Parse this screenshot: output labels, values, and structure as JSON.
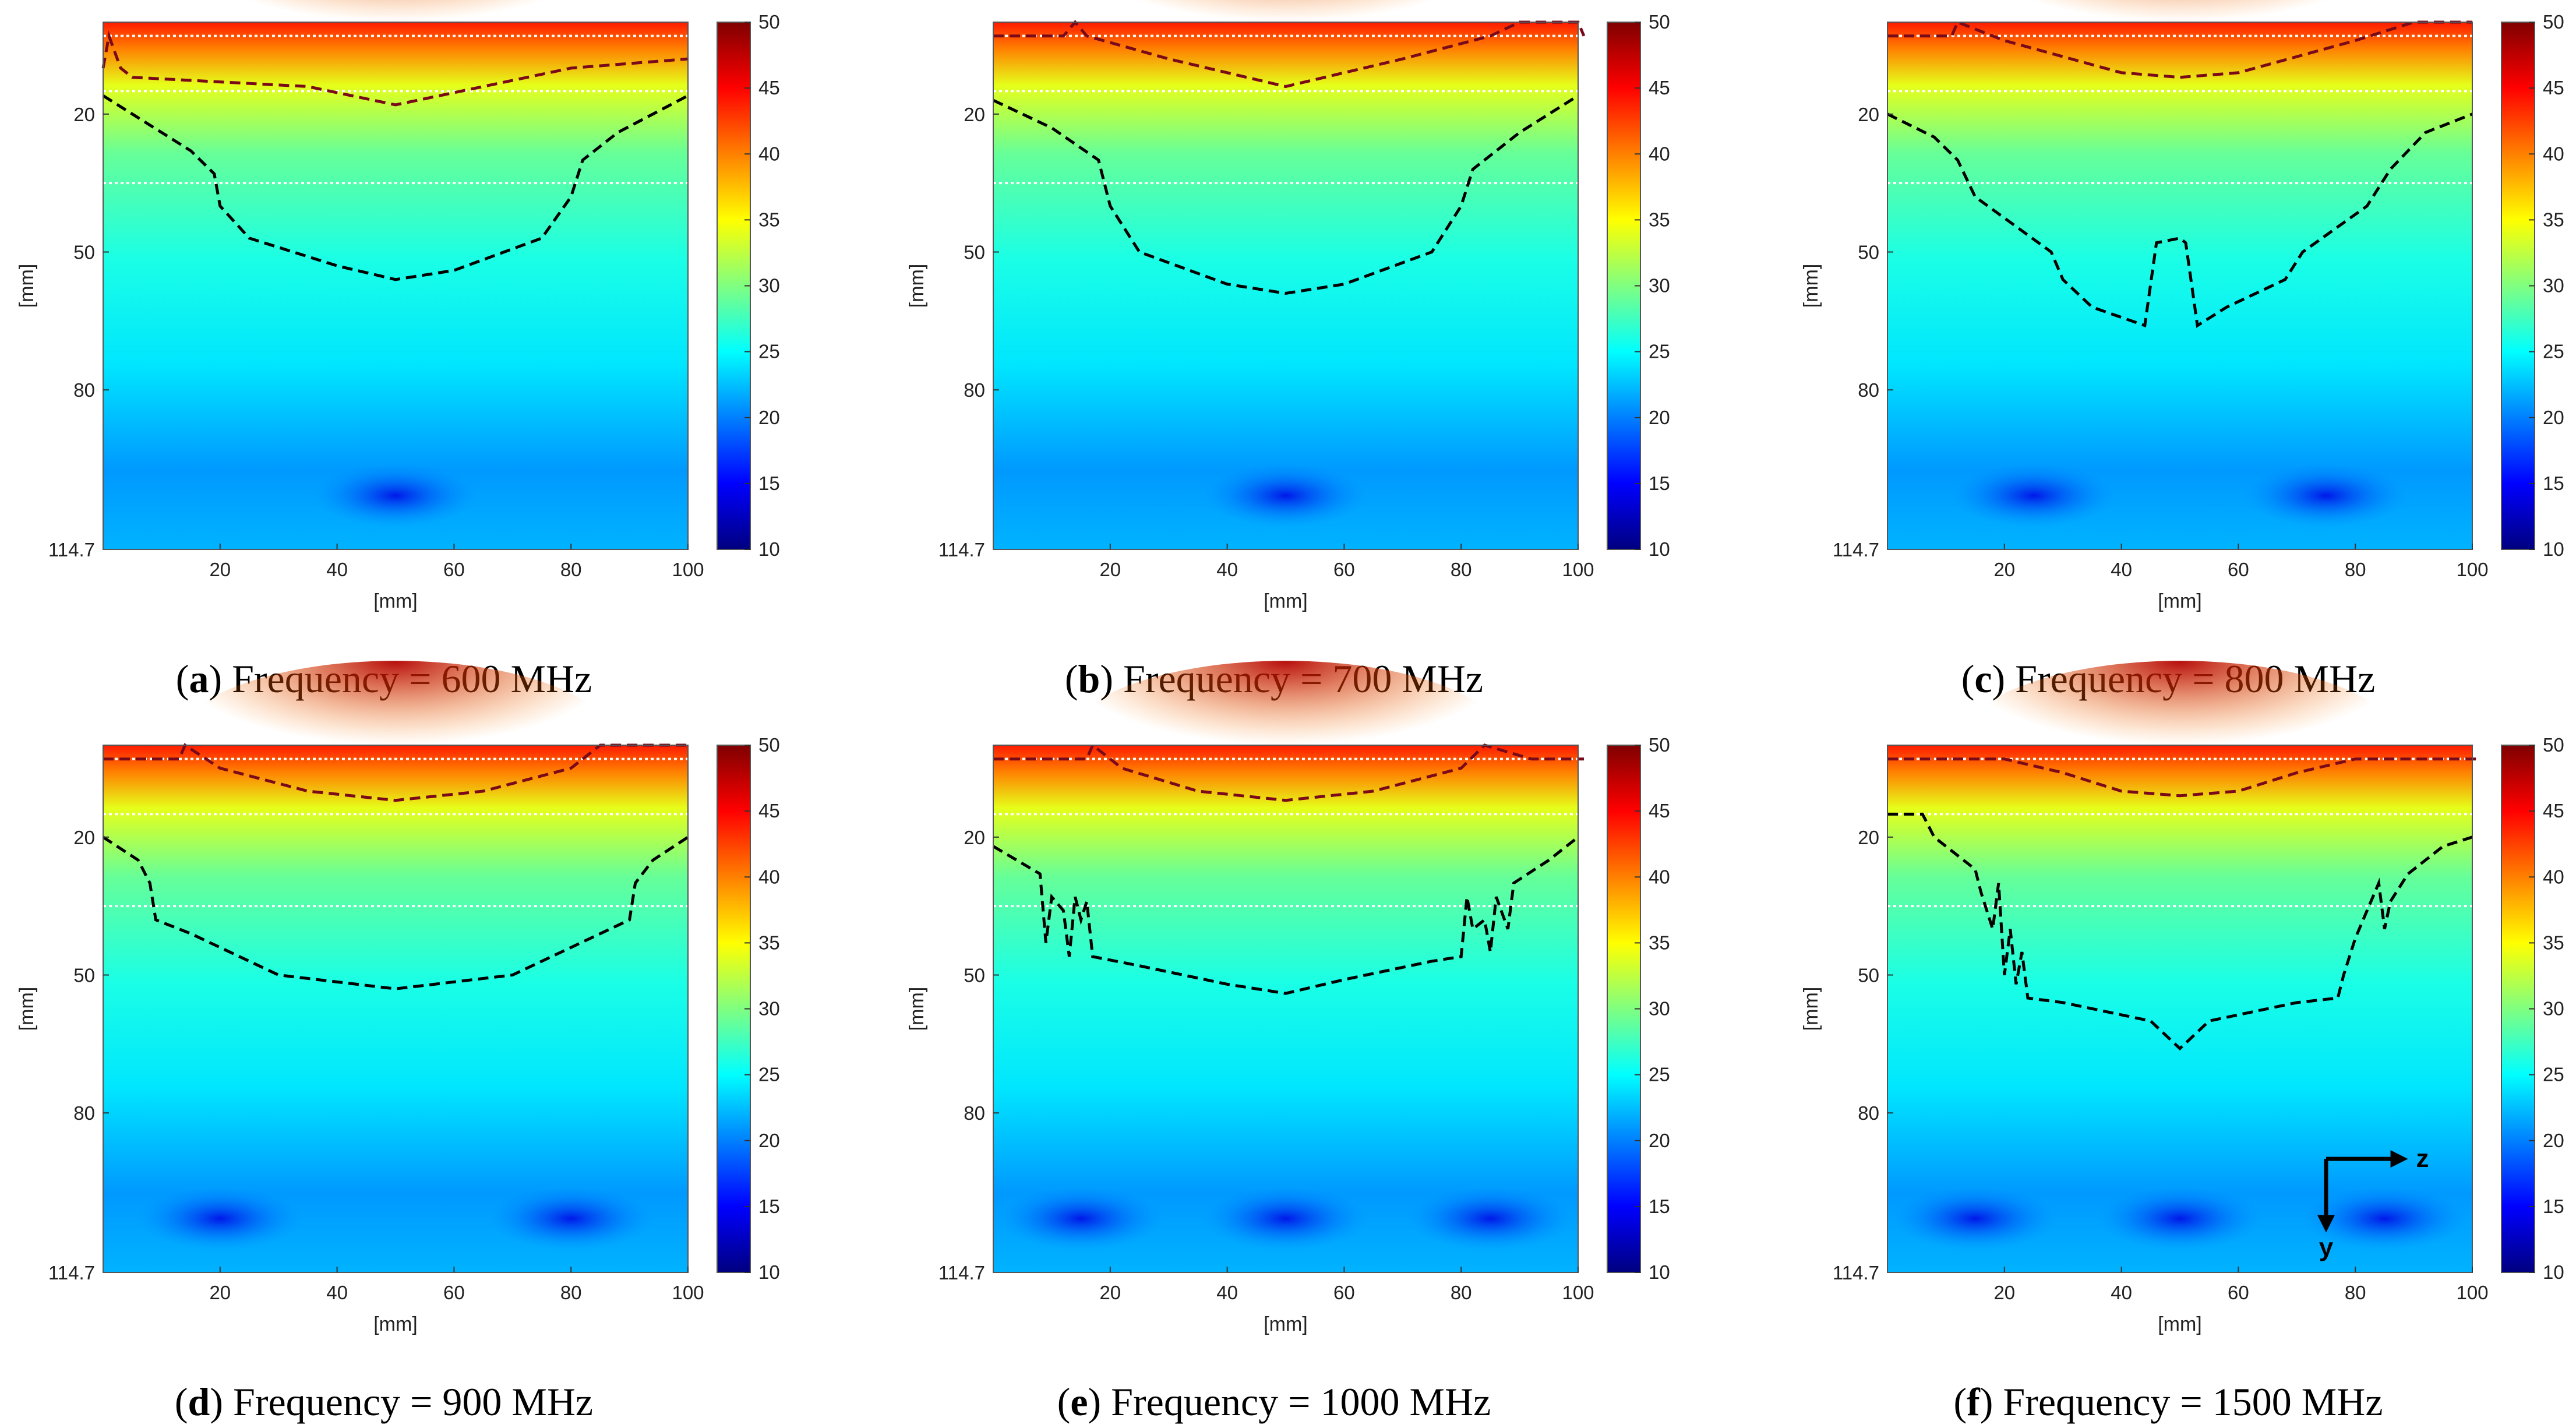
{
  "colorbar": {
    "min": 10,
    "max": 50,
    "ticks": [
      10,
      15,
      20,
      25,
      30,
      35,
      40,
      45,
      50
    ],
    "stops": [
      "#00007f",
      "#0000ff",
      "#0080ff",
      "#00ffff",
      "#80ff80",
      "#ffff00",
      "#ff8000",
      "#ff0000",
      "#7f0000"
    ]
  },
  "axes": {
    "xlabel": "[mm]",
    "ylabel": "[mm]",
    "xlim": [
      0,
      100
    ],
    "ylim": [
      0,
      114.7
    ],
    "xticks": [
      20,
      40,
      60,
      80,
      100
    ],
    "yticks": [
      20,
      50,
      80
    ],
    "ytick_extra": "114.7"
  },
  "colors": {
    "contour_black": "#000000",
    "contour_red": "#7a0a1a",
    "layer_line": "#ffffff"
  },
  "chart_data": [
    {
      "type": "heatmap",
      "panel": "a",
      "label": "a",
      "caption": "Frequency = 600 MHz",
      "xlabel": "[mm]",
      "ylabel": "[mm]",
      "layer_boundaries_mm": [
        3,
        15,
        35
      ],
      "red_contour": [
        [
          0,
          10
        ],
        [
          1,
          3
        ],
        [
          3,
          10
        ],
        [
          5,
          12
        ],
        [
          20,
          13
        ],
        [
          35,
          14
        ],
        [
          50,
          18
        ],
        [
          65,
          14
        ],
        [
          80,
          10
        ],
        [
          100,
          8
        ]
      ],
      "black_contour": [
        [
          0,
          16
        ],
        [
          5,
          20
        ],
        [
          15,
          28
        ],
        [
          19,
          33
        ],
        [
          20,
          40
        ],
        [
          25,
          47
        ],
        [
          40,
          53
        ],
        [
          50,
          56
        ],
        [
          60,
          54
        ],
        [
          75,
          47
        ],
        [
          80,
          38
        ],
        [
          82,
          30
        ],
        [
          88,
          24
        ],
        [
          100,
          16
        ]
      ]
    },
    {
      "type": "heatmap",
      "panel": "b",
      "label": "b",
      "caption": "Frequency = 700 MHz",
      "xlabel": "[mm]",
      "ylabel": "[mm]",
      "layer_boundaries_mm": [
        3,
        15,
        35
      ],
      "red_contour": [
        [
          0,
          3
        ],
        [
          12,
          3
        ],
        [
          14,
          0
        ],
        [
          16,
          3
        ],
        [
          30,
          8
        ],
        [
          50,
          14
        ],
        [
          70,
          8
        ],
        [
          85,
          3
        ],
        [
          90,
          0
        ],
        [
          100,
          0
        ],
        [
          101,
          3
        ]
      ],
      "black_contour": [
        [
          0,
          17
        ],
        [
          10,
          23
        ],
        [
          18,
          30
        ],
        [
          20,
          40
        ],
        [
          25,
          50
        ],
        [
          40,
          57
        ],
        [
          50,
          59
        ],
        [
          60,
          57
        ],
        [
          75,
          50
        ],
        [
          80,
          40
        ],
        [
          82,
          32
        ],
        [
          90,
          24
        ],
        [
          100,
          16
        ]
      ]
    },
    {
      "type": "heatmap",
      "panel": "c",
      "label": "c",
      "caption": "Frequency = 800 MHz",
      "xlabel": "[mm]",
      "ylabel": "[mm]",
      "layer_boundaries_mm": [
        3,
        15,
        35
      ],
      "red_contour": [
        [
          0,
          3
        ],
        [
          11,
          3
        ],
        [
          12,
          0
        ],
        [
          20,
          4
        ],
        [
          40,
          11
        ],
        [
          50,
          12
        ],
        [
          60,
          11
        ],
        [
          80,
          4
        ],
        [
          90,
          0
        ],
        [
          100,
          0
        ]
      ],
      "black_contour": [
        [
          0,
          20
        ],
        [
          8,
          25
        ],
        [
          12,
          30
        ],
        [
          15,
          38
        ],
        [
          28,
          50
        ],
        [
          30,
          56
        ],
        [
          35,
          62
        ],
        [
          44,
          66
        ],
        [
          45,
          57
        ],
        [
          46,
          48
        ],
        [
          50,
          47
        ],
        [
          51,
          48
        ],
        [
          52,
          57
        ],
        [
          53,
          66
        ],
        [
          58,
          62
        ],
        [
          68,
          56
        ],
        [
          71,
          50
        ],
        [
          82,
          40
        ],
        [
          86,
          32
        ],
        [
          92,
          24
        ],
        [
          100,
          20
        ]
      ]
    },
    {
      "type": "heatmap",
      "panel": "d",
      "label": "d",
      "caption": "Frequency = 900 MHz",
      "xlabel": "[mm]",
      "ylabel": "[mm]",
      "layer_boundaries_mm": [
        3,
        15,
        35
      ],
      "red_contour": [
        [
          0,
          3
        ],
        [
          13,
          3
        ],
        [
          14,
          0
        ],
        [
          20,
          5
        ],
        [
          35,
          10
        ],
        [
          50,
          12
        ],
        [
          65,
          10
        ],
        [
          80,
          5
        ],
        [
          85,
          0
        ],
        [
          100,
          0
        ]
      ],
      "black_contour": [
        [
          0,
          20
        ],
        [
          6,
          25
        ],
        [
          8,
          30
        ],
        [
          9,
          38
        ],
        [
          15,
          41
        ],
        [
          30,
          50
        ],
        [
          50,
          53
        ],
        [
          70,
          50
        ],
        [
          85,
          41
        ],
        [
          90,
          38
        ],
        [
          91,
          30
        ],
        [
          94,
          25
        ],
        [
          100,
          20
        ]
      ]
    },
    {
      "type": "heatmap",
      "panel": "e",
      "label": "e",
      "caption": "Frequency = 1000 MHz",
      "xlabel": "[mm]",
      "ylabel": "[mm]",
      "layer_boundaries_mm": [
        3,
        15,
        35
      ],
      "red_contour": [
        [
          0,
          3
        ],
        [
          16,
          3
        ],
        [
          17,
          0
        ],
        [
          22,
          5
        ],
        [
          35,
          10
        ],
        [
          50,
          12
        ],
        [
          65,
          10
        ],
        [
          80,
          5
        ],
        [
          84,
          0
        ],
        [
          92,
          3
        ],
        [
          101,
          3
        ]
      ],
      "black_contour": [
        [
          0,
          22
        ],
        [
          8,
          28
        ],
        [
          9,
          43
        ],
        [
          10,
          33
        ],
        [
          12,
          36
        ],
        [
          13,
          46
        ],
        [
          14,
          33
        ],
        [
          15,
          38
        ],
        [
          16,
          34
        ],
        [
          17,
          46
        ],
        [
          25,
          48
        ],
        [
          40,
          52
        ],
        [
          50,
          54
        ],
        [
          60,
          51
        ],
        [
          75,
          47
        ],
        [
          80,
          46
        ],
        [
          81,
          33
        ],
        [
          82,
          40
        ],
        [
          84,
          38
        ],
        [
          85,
          45
        ],
        [
          86,
          33
        ],
        [
          88,
          40
        ],
        [
          89,
          30
        ],
        [
          95,
          25
        ],
        [
          100,
          20
        ]
      ]
    },
    {
      "type": "heatmap",
      "panel": "f",
      "label": "f",
      "caption": "Frequency = 1500 MHz",
      "xlabel": "[mm]",
      "ylabel": "[mm]",
      "layer_boundaries_mm": [
        3,
        15,
        35
      ],
      "red_contour": [
        [
          0,
          3
        ],
        [
          20,
          3
        ],
        [
          30,
          6
        ],
        [
          40,
          10
        ],
        [
          50,
          11
        ],
        [
          60,
          10
        ],
        [
          70,
          6
        ],
        [
          80,
          3
        ],
        [
          101,
          3
        ]
      ],
      "black_contour": [
        [
          0,
          15
        ],
        [
          6,
          15
        ],
        [
          8,
          20
        ],
        [
          15,
          27
        ],
        [
          16,
          32
        ],
        [
          18,
          40
        ],
        [
          19,
          30
        ],
        [
          20,
          50
        ],
        [
          21,
          40
        ],
        [
          22,
          52
        ],
        [
          23,
          45
        ],
        [
          24,
          55
        ],
        [
          30,
          56
        ],
        [
          45,
          60
        ],
        [
          50,
          66
        ],
        [
          55,
          60
        ],
        [
          70,
          56
        ],
        [
          77,
          55
        ],
        [
          78,
          50
        ],
        [
          80,
          42
        ],
        [
          82,
          36
        ],
        [
          84,
          30
        ],
        [
          85,
          40
        ],
        [
          86,
          34
        ],
        [
          89,
          28
        ],
        [
          95,
          22
        ],
        [
          100,
          20
        ]
      ],
      "direction_arrows": {
        "horizontal": "z",
        "vertical": "y"
      }
    }
  ]
}
